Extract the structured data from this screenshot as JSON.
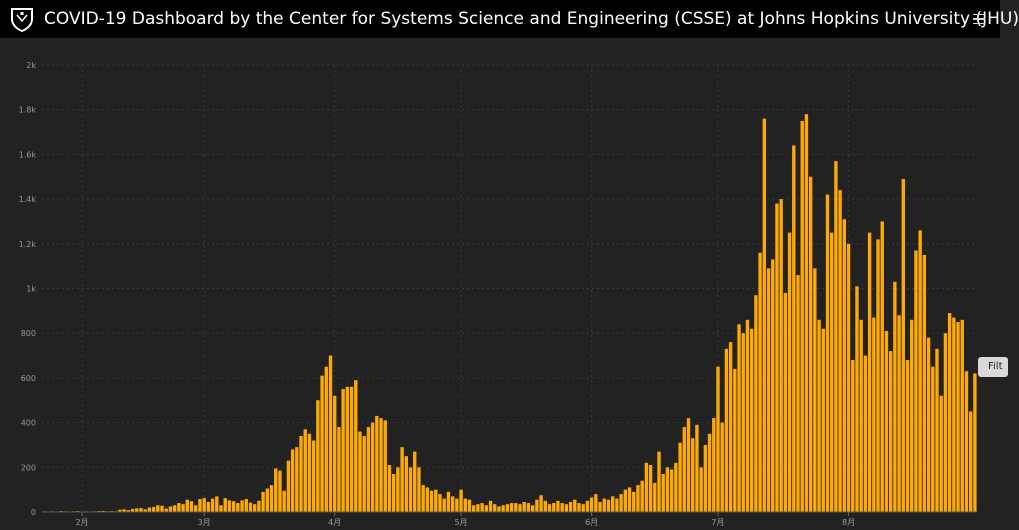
{
  "header": {
    "title": "COVID-19 Dashboard by the Center for Systems Science and Engineering (CSSE) at Johns Hopkins University (JHU)",
    "menu_icon": "hamburger-menu-icon",
    "logo_icon": "university-shield-icon"
  },
  "side_tab": {
    "label": "Filt"
  },
  "colors": {
    "bar": "#FFAA00",
    "background": "#222222",
    "header": "#000000",
    "grid": "#3a3a3a",
    "tick_text": "#999999"
  },
  "chart_data": {
    "type": "bar",
    "title": "",
    "xlabel": "",
    "ylabel": "",
    "ylim": [
      0,
      2000
    ],
    "yticks": [
      0,
      200,
      400,
      600,
      800,
      1000,
      1200,
      1400,
      1600,
      1800,
      2000
    ],
    "ytick_labels": [
      "0",
      "200",
      "400",
      "600",
      "800",
      "1k",
      "1.2k",
      "1.4k",
      "1.6k",
      "1.8k",
      "2k"
    ],
    "month_labels": [
      {
        "label": "2月",
        "index": 9
      },
      {
        "label": "3月",
        "index": 38
      },
      {
        "label": "4月",
        "index": 69
      },
      {
        "label": "5月",
        "index": 99
      },
      {
        "label": "6月",
        "index": 130
      },
      {
        "label": "7月",
        "index": 160
      },
      {
        "label": "8月",
        "index": 191
      }
    ],
    "grid": true,
    "legend": "none",
    "values": [
      3,
      2,
      3,
      2,
      4,
      3,
      2,
      3,
      4,
      2,
      3,
      2,
      3,
      4,
      5,
      3,
      4,
      3,
      10,
      12,
      8,
      14,
      16,
      18,
      12,
      20,
      22,
      30,
      28,
      15,
      25,
      30,
      40,
      35,
      55,
      48,
      30,
      58,
      62,
      45,
      60,
      70,
      30,
      62,
      52,
      48,
      40,
      52,
      58,
      42,
      35,
      50,
      90,
      105,
      120,
      195,
      185,
      95,
      230,
      280,
      290,
      340,
      370,
      350,
      320,
      500,
      610,
      650,
      700,
      520,
      380,
      550,
      560,
      560,
      590,
      360,
      340,
      380,
      400,
      430,
      420,
      410,
      210,
      170,
      200,
      290,
      250,
      200,
      270,
      200,
      120,
      110,
      95,
      100,
      80,
      60,
      90,
      70,
      60,
      100,
      60,
      55,
      30,
      35,
      40,
      30,
      50,
      35,
      25,
      30,
      35,
      40,
      40,
      35,
      45,
      40,
      30,
      55,
      75,
      50,
      35,
      40,
      50,
      40,
      35,
      45,
      55,
      40,
      35,
      50,
      65,
      80,
      45,
      60,
      55,
      70,
      60,
      80,
      100,
      110,
      90,
      120,
      140,
      220,
      210,
      130,
      270,
      170,
      200,
      190,
      220,
      310,
      380,
      420,
      330,
      390,
      200,
      300,
      350,
      420,
      650,
      400,
      730,
      760,
      640,
      840,
      800,
      860,
      820,
      970,
      1160,
      1760,
      1090,
      1130,
      1380,
      1400,
      980,
      1250,
      1640,
      1060,
      1750,
      1780,
      1500,
      1090,
      860,
      820,
      1420,
      1250,
      1570,
      1440,
      1310,
      1200,
      680,
      1010,
      860,
      700,
      1250,
      870,
      1220,
      1300,
      810,
      720,
      1030,
      880,
      1490,
      680,
      860,
      1170,
      1260,
      1150,
      780,
      650,
      730,
      520,
      800,
      890,
      870,
      850,
      860,
      630,
      450,
      620
    ]
  }
}
